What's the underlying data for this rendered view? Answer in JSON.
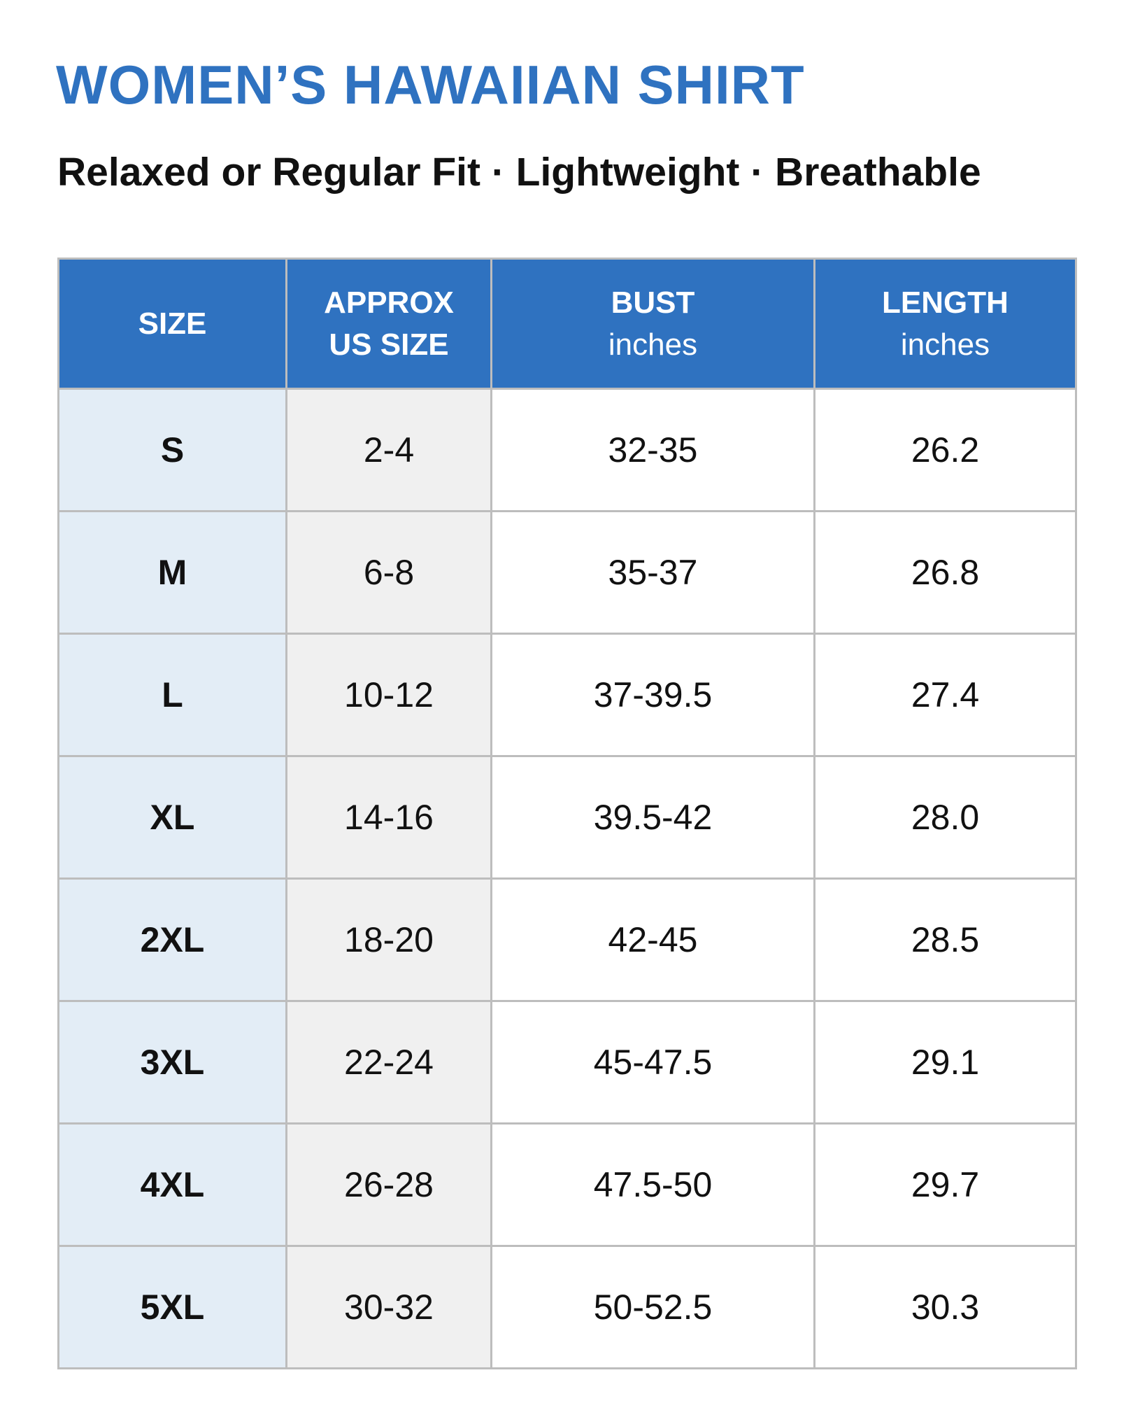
{
  "header": {
    "title": "WOMEN’S HAWAIIAN SHIRT",
    "subtitle": "Relaxed or Regular Fit · Lightweight · Breathable"
  },
  "table": {
    "columns": [
      {
        "label": [
          "SIZE"
        ]
      },
      {
        "label": [
          "APPROX",
          "US SIZE"
        ]
      },
      {
        "label": [
          "BUST"
        ],
        "unit": "inches"
      },
      {
        "label": [
          "LENGTH"
        ],
        "unit": "inches"
      }
    ],
    "rows": [
      [
        "S",
        "2-4",
        "32-35",
        "26.2"
      ],
      [
        "M",
        "6-8",
        "35-37",
        "26.8"
      ],
      [
        "L",
        "10-12",
        "37-39.5",
        "27.4"
      ],
      [
        "XL",
        "14-16",
        "39.5-42",
        "28.0"
      ],
      [
        "2XL",
        "18-20",
        "42-45",
        "28.5"
      ],
      [
        "3XL",
        "22-24",
        "45-47.5",
        "29.1"
      ],
      [
        "4XL",
        "26-28",
        "47.5-50",
        "29.7"
      ],
      [
        "5XL",
        "30-32",
        "50-52.5",
        "30.3"
      ]
    ]
  }
}
